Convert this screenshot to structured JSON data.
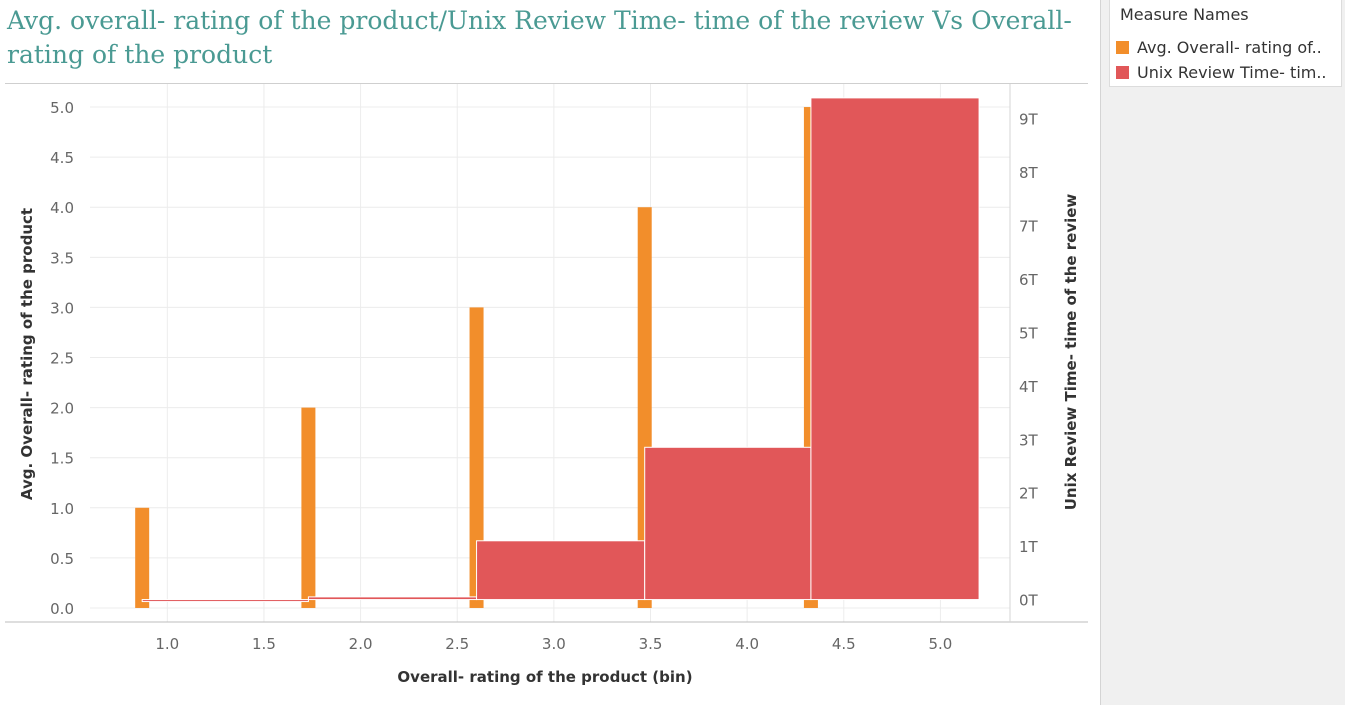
{
  "title": "Avg. overall- rating of the product/Unix Review Time- time of the review Vs Overall- rating of the product",
  "legend": {
    "title": "Measure Names",
    "items": [
      {
        "label": "Avg. Overall- rating of..",
        "color": "#f28e2b"
      },
      {
        "label": "Unix Review Time- tim..",
        "color": "#e15759"
      }
    ]
  },
  "chart_data": {
    "type": "bar",
    "xlabel": "Overall- rating of the product (bin)",
    "ylabel": "Avg. Overall- rating of the product",
    "y2label": "Unix Review Time- time of the review",
    "x_ticks": [
      "1.0",
      "1.5",
      "2.0",
      "2.5",
      "3.0",
      "3.5",
      "4.0",
      "4.5",
      "5.0"
    ],
    "y_ticks": [
      "0.0",
      "0.5",
      "1.0",
      "1.5",
      "2.0",
      "2.5",
      "3.0",
      "3.5",
      "4.0",
      "4.5",
      "5.0"
    ],
    "y2_ticks": [
      "0T",
      "1T",
      "2T",
      "3T",
      "4T",
      "5T",
      "6T",
      "7T",
      "8T",
      "9T"
    ],
    "x_range": [
      0.6,
      5.36
    ],
    "ylim": [
      -0.14,
      5.23
    ],
    "y2lim": [
      -0.42,
      9.65
    ],
    "grid": true,
    "series": [
      {
        "name": "Avg. Overall- rating of..",
        "axis": "left",
        "color": "#f28e2b",
        "x_centers": [
          0.87,
          1.73,
          2.6,
          3.47,
          4.33
        ],
        "values": [
          1.0,
          2.0,
          3.0,
          4.0,
          5.0
        ]
      },
      {
        "name": "Unix Review Time- tim..",
        "axis": "right",
        "color": "#e15759",
        "x_start": [
          0.87,
          1.73,
          2.6,
          3.47,
          4.33
        ],
        "x_end": [
          1.73,
          2.6,
          3.47,
          4.33,
          5.2
        ],
        "values": [
          0.0,
          0.05,
          1.1,
          2.85,
          9.39
        ]
      }
    ]
  }
}
